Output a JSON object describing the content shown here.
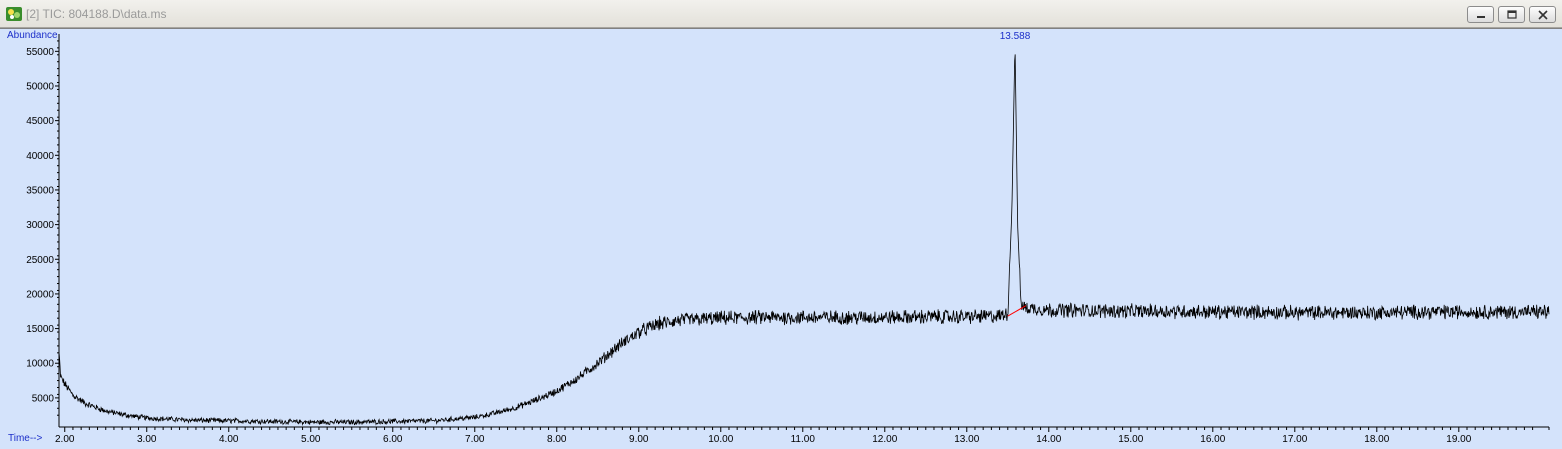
{
  "window": {
    "title": "[2] TIC: 804188.D\\data.ms",
    "icon": "chromatogram-app-icon",
    "buttons": [
      "minimize-icon",
      "restore-icon",
      "close-icon"
    ]
  },
  "colors": {
    "plot_background": "#d4e3fb",
    "trace": "#000000",
    "axis_label": "#1c2fc9",
    "baseline_marker": "#ff0000"
  },
  "chart_data": {
    "type": "line",
    "ylabel": "Abundance",
    "xlabel": "Time-->",
    "xlim": [
      1.93,
      20.1
    ],
    "ylim": [
      800,
      57500
    ],
    "y_ticks": [
      5000,
      10000,
      15000,
      20000,
      25000,
      30000,
      35000,
      40000,
      45000,
      50000,
      55000
    ],
    "y_tick_labels": [
      "5000",
      "10000",
      "15000",
      "20000",
      "25000",
      "30000",
      "35000",
      "40000",
      "45000",
      "50000",
      "55000"
    ],
    "x_ticks": [
      2,
      3,
      4,
      5,
      6,
      7,
      8,
      9,
      10,
      11,
      12,
      13,
      14,
      15,
      16,
      17,
      18,
      19
    ],
    "x_tick_labels": [
      "2.00",
      "3.00",
      "4.00",
      "5.00",
      "6.00",
      "7.00",
      "8.00",
      "9.00",
      "10.00",
      "11.00",
      "12.00",
      "13.00",
      "14.00",
      "15.00",
      "16.00",
      "17.00",
      "18.00",
      "19.00"
    ],
    "series": [
      {
        "x": [
          1.93,
          1.95,
          2.0,
          2.1,
          2.25,
          2.5,
          2.75,
          3.0,
          3.5,
          4.0,
          4.5,
          5.0,
          5.5,
          6.0,
          6.5,
          7.0,
          7.25,
          7.5,
          7.75,
          8.0,
          8.25,
          8.5,
          8.75,
          9.0,
          9.25,
          9.5,
          10.0,
          10.5,
          11.0,
          11.5,
          12.0,
          12.5,
          13.0,
          13.4,
          13.5,
          13.55,
          13.588,
          13.62,
          13.66,
          13.7,
          14.0,
          14.5,
          15.0,
          15.5,
          16.0,
          16.5,
          17.0,
          17.5,
          18.0,
          18.5,
          19.0,
          19.5,
          20.0,
          20.1
        ],
        "y": [
          11500,
          8000,
          7000,
          5400,
          4200,
          3100,
          2500,
          2100,
          1800,
          1700,
          1600,
          1500,
          1500,
          1600,
          1700,
          2200,
          2800,
          3600,
          4700,
          6000,
          7800,
          10000,
          12500,
          14500,
          15700,
          16200,
          16500,
          16600,
          16600,
          16600,
          16600,
          16700,
          16700,
          16800,
          17200,
          32000,
          56300,
          30000,
          18800,
          18000,
          17700,
          17600,
          17500,
          17500,
          17400,
          17400,
          17300,
          17300,
          17300,
          17400,
          17400,
          17400,
          17400,
          17400
        ]
      }
    ],
    "noise_amplitude": 650,
    "annotations": [
      {
        "label": "13.588",
        "x": 13.588,
        "y": 56300
      }
    ],
    "baseline_segment": {
      "x": [
        13.5,
        13.72
      ],
      "y": [
        16800,
        18300
      ]
    }
  }
}
